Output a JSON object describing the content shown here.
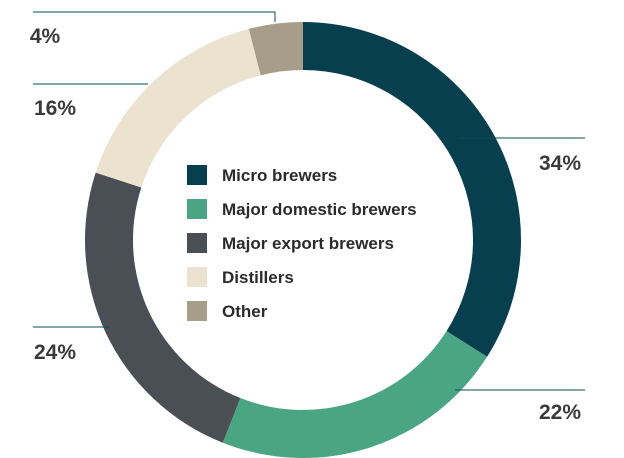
{
  "chart_data": {
    "type": "pie",
    "donut": true,
    "title": "",
    "categories": [
      "Micro brewers",
      "Major domestic brewers",
      "Major export brewers",
      "Distillers",
      "Other"
    ],
    "values": [
      34,
      22,
      24,
      16,
      4
    ],
    "value_labels": [
      "34%",
      "22%",
      "24%",
      "16%",
      "4%"
    ],
    "colors": [
      "#073f4e",
      "#4aa585",
      "#4a4f55",
      "#ebe3d0",
      "#a69e88"
    ],
    "legend": {
      "placement": "center"
    }
  }
}
